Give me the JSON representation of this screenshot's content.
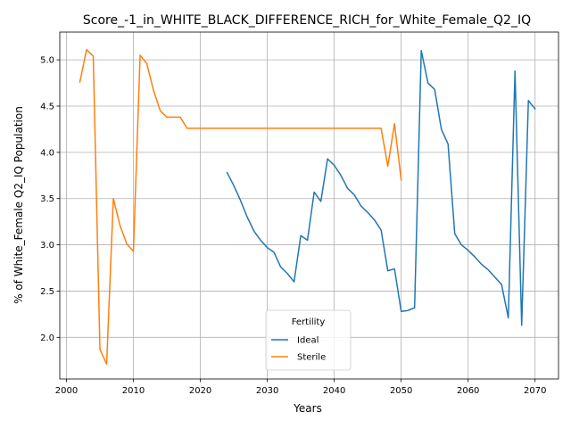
{
  "chart_data": {
    "type": "line",
    "title": "Score_-1_in_WHITE_BLACK_DIFFERENCE_RICH_for_White_Female_Q2_IQ",
    "xlabel": "Years",
    "ylabel": "% of White_Female Q2_IQ Population",
    "xlim": [
      1999,
      2073.5
    ],
    "ylim": [
      1.55,
      5.3
    ],
    "xticks": [
      2000,
      2010,
      2020,
      2030,
      2040,
      2050,
      2060,
      2070
    ],
    "yticks": [
      2.0,
      2.5,
      3.0,
      3.5,
      4.0,
      4.5,
      5.0
    ],
    "ytick_labels": [
      "2.0",
      "2.5",
      "3.0",
      "3.5",
      "4.0",
      "4.5",
      "5.0"
    ],
    "grid": true,
    "legend": {
      "title": "Fertility",
      "placement": "lower-center"
    },
    "series": [
      {
        "name": "Ideal",
        "color": "#1f77b4",
        "x": [
          2024,
          2025,
          2026,
          2027,
          2028,
          2029,
          2030,
          2031,
          2032,
          2033,
          2034,
          2035,
          2036,
          2037,
          2038,
          2039,
          2040,
          2041,
          2042,
          2043,
          2044,
          2045,
          2046,
          2047,
          2048,
          2049,
          2050,
          2051,
          2052,
          2053,
          2054,
          2055,
          2056,
          2057,
          2058,
          2059,
          2060,
          2061,
          2062,
          2063,
          2064,
          2065,
          2066,
          2067,
          2068,
          2069,
          2070
        ],
        "y": [
          3.78,
          3.64,
          3.48,
          3.3,
          3.15,
          3.05,
          2.97,
          2.92,
          2.76,
          2.69,
          2.6,
          3.1,
          3.05,
          3.57,
          3.47,
          3.93,
          3.86,
          3.75,
          3.61,
          3.54,
          3.42,
          3.35,
          3.27,
          3.16,
          2.72,
          2.74,
          2.28,
          2.29,
          2.32,
          5.1,
          4.75,
          4.68,
          4.25,
          4.09,
          3.12,
          3.0,
          2.94,
          2.87,
          2.79,
          2.73,
          2.65,
          2.57,
          2.21,
          4.88,
          2.13,
          4.56,
          4.47
        ]
      },
      {
        "name": "Sterile",
        "color": "#ff7f0e",
        "x": [
          2002,
          2003,
          2004,
          2005,
          2006,
          2007,
          2008,
          2009,
          2010,
          2011,
          2012,
          2013,
          2014,
          2015,
          2016,
          2017,
          2018,
          2019,
          2020,
          2021,
          2022,
          2023,
          2024,
          2025,
          2026,
          2027,
          2028,
          2029,
          2030,
          2031,
          2032,
          2033,
          2034,
          2035,
          2036,
          2037,
          2038,
          2039,
          2040,
          2041,
          2042,
          2043,
          2044,
          2045,
          2046,
          2047,
          2048,
          2049,
          2050
        ],
        "y": [
          4.76,
          5.11,
          5.04,
          1.87,
          1.71,
          3.5,
          3.21,
          3.01,
          2.93,
          5.05,
          4.96,
          4.67,
          4.45,
          4.38,
          4.38,
          4.38,
          4.26,
          4.26,
          4.26,
          4.26,
          4.26,
          4.26,
          4.26,
          4.26,
          4.26,
          4.26,
          4.26,
          4.26,
          4.26,
          4.26,
          4.26,
          4.26,
          4.26,
          4.26,
          4.26,
          4.26,
          4.26,
          4.26,
          4.26,
          4.26,
          4.26,
          4.26,
          4.26,
          4.26,
          4.26,
          4.26,
          3.85,
          4.31,
          3.7
        ]
      }
    ]
  }
}
